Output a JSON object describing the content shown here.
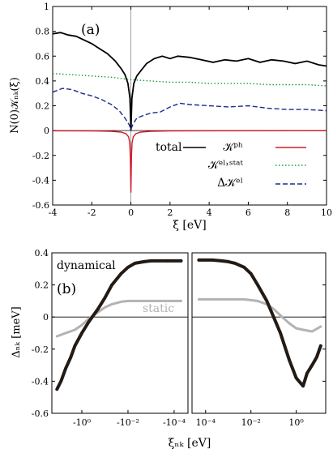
{
  "panel_a": {
    "label": "(a)",
    "ylabel": "N(0)𝒦ₙₖ(ξ)",
    "xlabel": "ξ [eV]"
  },
  "panel_b": {
    "label": "(b)",
    "ylabel": "Δₙₖ [meV]",
    "xlabel": "ξₙₖ [eV]",
    "annotation_dynamical": "dynamical",
    "annotation_static": "static"
  },
  "chart_data": [
    {
      "type": "line",
      "panel": "(a)",
      "xlabel": "ξ [eV]",
      "ylabel": "N(0)𝒦ₙₖ(ξ)",
      "xlim": [
        -4,
        10
      ],
      "ylim": [
        -0.6,
        1.0
      ],
      "xticks": [
        "-4",
        "-2",
        "0",
        "2",
        "4",
        "6",
        "8",
        "10"
      ],
      "yticks": [
        "-0.6",
        "-0.4",
        "-0.2",
        "0",
        "0.2",
        "0.4",
        "0.6",
        "0.8",
        "1"
      ],
      "legend_position": "bottom-right",
      "series": [
        {
          "name": "total",
          "color": "#000000",
          "style": "solid",
          "x": [
            -4,
            -3.6,
            -3.2,
            -2.8,
            -2.4,
            -2.0,
            -1.6,
            -1.2,
            -0.8,
            -0.5,
            -0.3,
            -0.15,
            -0.05,
            0,
            0.05,
            0.15,
            0.3,
            0.5,
            0.8,
            1.2,
            1.6,
            2.0,
            2.4,
            3.0,
            3.6,
            4.2,
            4.8,
            5.4,
            6.0,
            6.6,
            7.2,
            7.8,
            8.4,
            9.0,
            9.6,
            10
          ],
          "y": [
            0.78,
            0.79,
            0.77,
            0.76,
            0.73,
            0.7,
            0.66,
            0.62,
            0.56,
            0.5,
            0.45,
            0.38,
            0.26,
            0.0,
            0.26,
            0.38,
            0.44,
            0.48,
            0.54,
            0.58,
            0.6,
            0.58,
            0.6,
            0.59,
            0.57,
            0.55,
            0.57,
            0.56,
            0.58,
            0.55,
            0.57,
            0.56,
            0.54,
            0.56,
            0.53,
            0.52
          ]
        },
        {
          "name": "𝒦ᵖʰ",
          "color": "#d11b2a",
          "style": "solid",
          "x": [
            -4,
            -2,
            -1,
            -0.5,
            -0.25,
            -0.12,
            -0.06,
            -0.03,
            0,
            0.03,
            0.06,
            0.12,
            0.25,
            0.5,
            1,
            2,
            4,
            10
          ],
          "y": [
            -0.002,
            -0.003,
            -0.006,
            -0.012,
            -0.025,
            -0.05,
            -0.1,
            -0.2,
            -0.5,
            -0.2,
            -0.1,
            -0.05,
            -0.025,
            -0.012,
            -0.006,
            -0.003,
            -0.002,
            -0.001
          ]
        },
        {
          "name": "𝒦ᵉˡ˒ˢᵗᵃᵗ",
          "color": "#1a9a3a",
          "style": "dotted",
          "x": [
            -4,
            -3,
            -2,
            -1,
            0,
            1,
            2,
            3,
            4,
            5,
            6,
            7,
            8,
            9,
            10
          ],
          "y": [
            0.46,
            0.45,
            0.44,
            0.43,
            0.41,
            0.4,
            0.39,
            0.39,
            0.38,
            0.38,
            0.38,
            0.37,
            0.37,
            0.37,
            0.36
          ]
        },
        {
          "name": "Δ𝒦ᵉˡ",
          "color": "#1c2b8c",
          "style": "dashed",
          "x": [
            -4,
            -3.5,
            -3,
            -2.5,
            -2,
            -1.5,
            -1,
            -0.6,
            -0.3,
            -0.1,
            0,
            0.1,
            0.3,
            0.6,
            1,
            1.5,
            2,
            2.5,
            3,
            4,
            5,
            6,
            7,
            8,
            9,
            10
          ],
          "y": [
            0.31,
            0.34,
            0.33,
            0.3,
            0.28,
            0.25,
            0.21,
            0.16,
            0.1,
            0.05,
            0.01,
            0.05,
            0.1,
            0.12,
            0.14,
            0.15,
            0.19,
            0.22,
            0.21,
            0.2,
            0.19,
            0.2,
            0.18,
            0.17,
            0.17,
            0.16
          ]
        }
      ]
    },
    {
      "type": "scatter",
      "panel": "(b)",
      "xlabel": "ξₙₖ [eV]",
      "ylabel": "Δₙₖ [meV]",
      "ylim": [
        -0.6,
        0.4
      ],
      "yticks": [
        "-0.6",
        "-0.4",
        "-0.2",
        "0",
        "0.2",
        "0.4"
      ],
      "x_scale": "symmetric log (split axis)",
      "xticks_left": [
        "-10⁰",
        "-10⁻²",
        "-10⁻⁴"
      ],
      "xticks_right": [
        "10⁻⁴",
        "10⁻²",
        "10⁰"
      ],
      "series": [
        {
          "name": "dynamical",
          "color": "#231a14",
          "x": [
            -12,
            -8,
            -5,
            -3,
            -2,
            -1,
            -0.5,
            -0.2,
            -0.1,
            -0.05,
            -0.02,
            -0.01,
            -0.005,
            -0.002,
            -0.001,
            -0.0005,
            -0.0002,
            -0.0001,
            -5e-05,
            5e-05,
            0.0001,
            0.0002,
            0.0005,
            0.001,
            0.002,
            0.005,
            0.01,
            0.02,
            0.05,
            0.1,
            0.2,
            0.5,
            1,
            2,
            3,
            5,
            8,
            12
          ],
          "y": [
            -0.45,
            -0.4,
            -0.32,
            -0.25,
            -0.18,
            -0.1,
            -0.03,
            0.05,
            0.12,
            0.2,
            0.27,
            0.31,
            0.335,
            0.345,
            0.35,
            0.35,
            0.35,
            0.35,
            0.35,
            0.355,
            0.355,
            0.355,
            0.35,
            0.345,
            0.335,
            0.31,
            0.27,
            0.2,
            0.1,
            0.0,
            -0.1,
            -0.27,
            -0.38,
            -0.43,
            -0.35,
            -0.3,
            -0.25,
            -0.18
          ]
        },
        {
          "name": "static",
          "color": "#b3b3b3",
          "x": [
            -12,
            -5,
            -2,
            -1,
            -0.5,
            -0.2,
            -0.1,
            -0.05,
            -0.02,
            -0.01,
            -0.005,
            -0.001,
            -0.0001,
            -5e-05,
            5e-05,
            0.0001,
            0.001,
            0.005,
            0.01,
            0.02,
            0.05,
            0.1,
            0.2,
            0.5,
            1,
            2,
            5,
            12
          ],
          "y": [
            -0.12,
            -0.1,
            -0.08,
            -0.05,
            -0.01,
            0.03,
            0.06,
            0.08,
            0.095,
            0.1,
            0.1,
            0.1,
            0.1,
            0.1,
            0.11,
            0.11,
            0.11,
            0.11,
            0.105,
            0.1,
            0.08,
            0.05,
            0.01,
            -0.04,
            -0.07,
            -0.08,
            -0.09,
            -0.06
          ]
        }
      ]
    }
  ]
}
